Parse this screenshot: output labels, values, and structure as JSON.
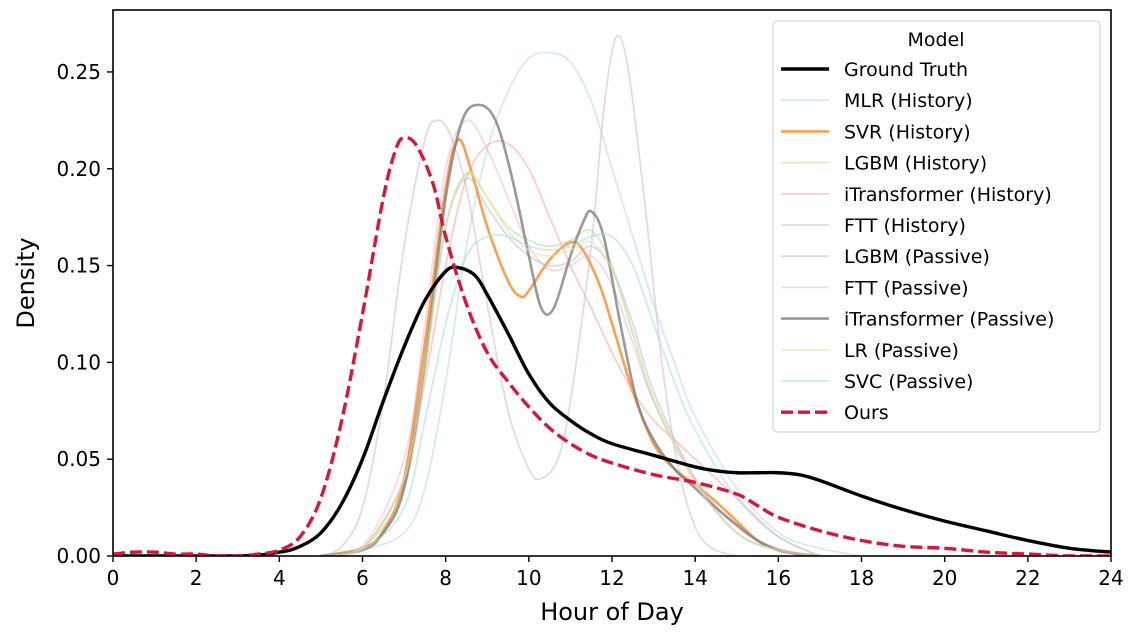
{
  "chart_data": {
    "type": "line",
    "title": "",
    "xlabel": "Hour of Day",
    "ylabel": "Density",
    "xlim": [
      0,
      24
    ],
    "ylim": [
      0,
      0.282
    ],
    "xticks": [
      0,
      2,
      4,
      6,
      8,
      10,
      12,
      14,
      16,
      18,
      20,
      22,
      24
    ],
    "yticks": [
      0.0,
      0.05,
      0.1,
      0.15,
      0.2,
      0.25
    ],
    "ytick_labels": [
      "0.00",
      "0.05",
      "0.10",
      "0.15",
      "0.20",
      "0.25"
    ],
    "grid": false,
    "legend": {
      "title": "Model",
      "position": "top-right"
    },
    "series": [
      {
        "name": "MLR (History)",
        "color": "#a6cee3",
        "opacity": 0.45,
        "width": 1.8,
        "dash": "solid",
        "x": [
          5,
          6,
          7,
          7.5,
          8,
          8.5,
          9,
          9.5,
          10,
          10.5,
          11,
          11.5,
          12,
          12.5,
          13,
          13.5,
          14,
          15,
          16,
          17,
          18
        ],
        "y": [
          0.0,
          0.003,
          0.012,
          0.035,
          0.09,
          0.16,
          0.21,
          0.24,
          0.257,
          0.26,
          0.255,
          0.235,
          0.2,
          0.165,
          0.13,
          0.1,
          0.072,
          0.035,
          0.012,
          0.004,
          0.0
        ]
      },
      {
        "name": "SVR (History)",
        "color": "#ff7f0e",
        "opacity": 0.75,
        "width": 2.6,
        "dash": "solid",
        "x": [
          5,
          6,
          6.5,
          7,
          7.5,
          8,
          8.3,
          8.6,
          9,
          9.5,
          9.8,
          10,
          10.5,
          11,
          11.3,
          11.7,
          12,
          12.5,
          13,
          13.5,
          14,
          14.5,
          15,
          15.5,
          16,
          16.5,
          17
        ],
        "y": [
          0.0,
          0.004,
          0.013,
          0.04,
          0.11,
          0.19,
          0.215,
          0.2,
          0.17,
          0.142,
          0.134,
          0.137,
          0.153,
          0.162,
          0.158,
          0.14,
          0.12,
          0.085,
          0.058,
          0.045,
          0.037,
          0.028,
          0.018,
          0.008,
          0.003,
          0.001,
          0.0
        ]
      },
      {
        "name": "LGBM (History)",
        "color": "#b2df8a",
        "opacity": 0.55,
        "width": 1.8,
        "dash": "solid",
        "x": [
          5,
          6,
          7,
          7.5,
          8,
          8.5,
          9,
          9.5,
          10,
          10.5,
          11,
          11.5,
          12,
          12.5,
          13,
          14,
          15,
          16,
          17
        ],
        "y": [
          0.0,
          0.004,
          0.035,
          0.095,
          0.17,
          0.197,
          0.185,
          0.17,
          0.163,
          0.16,
          0.163,
          0.168,
          0.15,
          0.115,
          0.08,
          0.038,
          0.012,
          0.003,
          0.0
        ]
      },
      {
        "name": "iTransformer (History)",
        "color": "#fb9a99",
        "opacity": 0.5,
        "width": 1.8,
        "dash": "solid",
        "x": [
          5,
          6,
          7,
          7.5,
          8,
          8.5,
          9,
          9.5,
          10,
          10.5,
          11,
          11.5,
          12,
          12.5,
          13,
          13.5,
          14,
          15,
          16,
          17
        ],
        "y": [
          0.0,
          0.004,
          0.04,
          0.09,
          0.15,
          0.195,
          0.212,
          0.213,
          0.2,
          0.175,
          0.15,
          0.128,
          0.105,
          0.085,
          0.07,
          0.06,
          0.05,
          0.03,
          0.01,
          0.0
        ]
      },
      {
        "name": "FTT (History)",
        "color": "#cab2d6",
        "opacity": 0.5,
        "width": 1.8,
        "dash": "solid",
        "x": [
          5,
          5.5,
          6,
          6.5,
          7,
          7.5,
          7.8,
          8.1,
          8.5,
          9,
          9.5,
          10,
          10.3,
          10.7,
          11,
          11.5,
          11.8,
          12.1,
          12.4,
          12.8,
          13.2,
          13.6,
          14,
          14.4,
          15
        ],
        "y": [
          0.0,
          0.005,
          0.025,
          0.08,
          0.16,
          0.215,
          0.225,
          0.218,
          0.19,
          0.13,
          0.075,
          0.045,
          0.04,
          0.05,
          0.08,
          0.16,
          0.23,
          0.268,
          0.25,
          0.18,
          0.1,
          0.045,
          0.015,
          0.004,
          0.0
        ]
      },
      {
        "name": "LGBM (Passive)",
        "color": "#bdbdbd",
        "opacity": 0.55,
        "width": 1.8,
        "dash": "solid",
        "x": [
          5,
          6,
          7,
          7.5,
          8,
          8.5,
          9,
          9.5,
          10,
          10.5,
          11,
          11.5,
          12,
          12.5,
          13,
          14,
          15,
          16,
          17
        ],
        "y": [
          0.0,
          0.004,
          0.04,
          0.1,
          0.17,
          0.195,
          0.18,
          0.165,
          0.155,
          0.15,
          0.152,
          0.16,
          0.148,
          0.12,
          0.085,
          0.04,
          0.012,
          0.003,
          0.0
        ]
      },
      {
        "name": "FTT (Passive)",
        "color": "#f4a6c6",
        "opacity": 0.45,
        "width": 1.8,
        "dash": "solid",
        "x": [
          5,
          6,
          7,
          7.5,
          8,
          8.5,
          9,
          9.5,
          10,
          10.5,
          11,
          11.5,
          12,
          12.5,
          13,
          14,
          15,
          16,
          17
        ],
        "y": [
          0.0,
          0.005,
          0.05,
          0.12,
          0.2,
          0.225,
          0.21,
          0.185,
          0.16,
          0.148,
          0.15,
          0.155,
          0.14,
          0.11,
          0.08,
          0.04,
          0.015,
          0.004,
          0.0
        ]
      },
      {
        "name": "iTransformer (Passive)",
        "color": "#7f7f7f",
        "opacity": 0.8,
        "width": 2.6,
        "dash": "solid",
        "x": [
          5,
          6,
          6.5,
          7,
          7.5,
          8,
          8.4,
          8.8,
          9.2,
          9.6,
          10,
          10.3,
          10.6,
          11,
          11.3,
          11.5,
          11.8,
          12.2,
          12.6,
          13,
          13.5,
          14,
          14.5,
          15,
          15.5,
          16,
          16.5,
          17
        ],
        "y": [
          0.0,
          0.003,
          0.012,
          0.035,
          0.1,
          0.185,
          0.225,
          0.233,
          0.225,
          0.195,
          0.155,
          0.128,
          0.128,
          0.155,
          0.172,
          0.178,
          0.165,
          0.12,
          0.08,
          0.06,
          0.045,
          0.035,
          0.025,
          0.016,
          0.008,
          0.003,
          0.001,
          0.0
        ]
      },
      {
        "name": "LR (Passive)",
        "color": "#d9e6a8",
        "opacity": 0.6,
        "width": 1.8,
        "dash": "solid",
        "x": [
          5,
          6,
          7,
          7.5,
          8,
          8.5,
          9,
          9.5,
          10,
          10.5,
          11,
          11.5,
          12,
          12.5,
          13,
          14,
          15,
          16,
          17
        ],
        "y": [
          0.0,
          0.004,
          0.04,
          0.1,
          0.17,
          0.198,
          0.185,
          0.168,
          0.158,
          0.155,
          0.158,
          0.162,
          0.148,
          0.115,
          0.082,
          0.038,
          0.012,
          0.003,
          0.0
        ]
      },
      {
        "name": "SVC (Passive)",
        "color": "#9edae5",
        "opacity": 0.55,
        "width": 1.8,
        "dash": "solid",
        "x": [
          5,
          6,
          7,
          7.5,
          8,
          8.5,
          9,
          9.5,
          10,
          10.5,
          11,
          11.5,
          12,
          12.5,
          13,
          13.5,
          14,
          15,
          16,
          17
        ],
        "y": [
          0.0,
          0.003,
          0.025,
          0.07,
          0.12,
          0.155,
          0.165,
          0.165,
          0.16,
          0.158,
          0.16,
          0.165,
          0.165,
          0.15,
          0.12,
          0.09,
          0.065,
          0.03,
          0.01,
          0.0
        ]
      },
      {
        "name": "Ground Truth",
        "color": "#000000",
        "opacity": 1.0,
        "width": 3.4,
        "dash": "solid",
        "x": [
          0,
          3,
          4,
          4.5,
          5,
          5.5,
          6,
          6.5,
          7,
          7.5,
          8,
          8.3,
          8.7,
          9,
          9.5,
          10,
          10.5,
          11,
          11.5,
          12,
          13,
          14,
          14.5,
          15,
          15.5,
          16,
          16.5,
          17,
          18,
          19,
          20,
          21,
          22,
          23,
          24
        ],
        "y": [
          0.0,
          0.0,
          0.002,
          0.005,
          0.012,
          0.027,
          0.05,
          0.08,
          0.108,
          0.132,
          0.147,
          0.149,
          0.145,
          0.135,
          0.115,
          0.094,
          0.079,
          0.07,
          0.063,
          0.058,
          0.052,
          0.046,
          0.044,
          0.043,
          0.043,
          0.043,
          0.042,
          0.039,
          0.031,
          0.024,
          0.018,
          0.013,
          0.008,
          0.004,
          0.002
        ]
      },
      {
        "name": "Ours",
        "color": "#d6163c",
        "opacity": 1.0,
        "width": 3.4,
        "dash": "dashed",
        "x": [
          0,
          0.5,
          1,
          1.5,
          2,
          2.5,
          3,
          3.5,
          4,
          4.5,
          5,
          5.5,
          6,
          6.5,
          6.8,
          7,
          7.3,
          7.7,
          8,
          8.5,
          9,
          9.5,
          10,
          10.5,
          11,
          11.5,
          12,
          13,
          14,
          15,
          15.5,
          16,
          17,
          18,
          19,
          20,
          21,
          22,
          23,
          24
        ],
        "y": [
          0.001,
          0.002,
          0.002,
          0.001,
          0.001,
          0.0,
          0.0,
          0.001,
          0.003,
          0.01,
          0.03,
          0.07,
          0.125,
          0.185,
          0.21,
          0.216,
          0.212,
          0.192,
          0.165,
          0.13,
          0.105,
          0.09,
          0.077,
          0.066,
          0.058,
          0.052,
          0.048,
          0.042,
          0.038,
          0.032,
          0.026,
          0.02,
          0.013,
          0.008,
          0.005,
          0.004,
          0.002,
          0.001,
          0.0,
          0.0
        ]
      }
    ],
    "legend_order": [
      "Ground Truth",
      "MLR (History)",
      "SVR (History)",
      "LGBM (History)",
      "iTransformer (History)",
      "FTT (History)",
      "LGBM (Passive)",
      "FTT (Passive)",
      "iTransformer (Passive)",
      "LR (Passive)",
      "SVC (Passive)",
      "Ours"
    ]
  }
}
